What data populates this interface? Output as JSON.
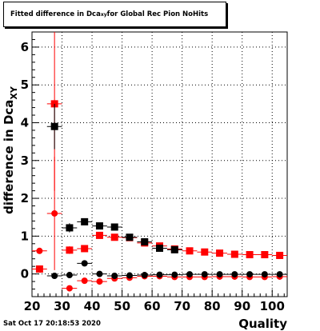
{
  "chart_data": {
    "type": "scatter",
    "title_prefix": "Fitted difference in Dca",
    "title_sub": "xy",
    "title_suffix": " for Global Rec Pion NoHits",
    "xlabel": "Quality",
    "ylabel_main": "difference in Dca",
    "ylabel_sub": "XY",
    "xlim": [
      20,
      105
    ],
    "ylim": [
      -0.6,
      6.4
    ],
    "x_ticks": [
      20,
      30,
      40,
      50,
      60,
      70,
      80,
      90,
      100
    ],
    "y_ticks": [
      0,
      1,
      2,
      3,
      4,
      5,
      6
    ],
    "grid": true,
    "x_error": 2.5,
    "series": [
      {
        "marker": "square",
        "color": "#ff0000",
        "points": [
          [
            27.5,
            4.5,
            2.3
          ],
          [
            32.5,
            0.63,
            0.1
          ],
          [
            37.5,
            0.67,
            0.06
          ],
          [
            42.5,
            1.02,
            0.06
          ],
          [
            47.5,
            0.97,
            0.05
          ],
          [
            52.5,
            0.96,
            0.05
          ],
          [
            57.5,
            0.82,
            0.04
          ],
          [
            62.5,
            0.74,
            0.04
          ],
          [
            67.5,
            0.66,
            0.03
          ],
          [
            72.5,
            0.61,
            0.03
          ],
          [
            77.5,
            0.58,
            0.03
          ],
          [
            82.5,
            0.55,
            0.02
          ],
          [
            87.5,
            0.52,
            0.02
          ],
          [
            92.5,
            0.51,
            0.02
          ],
          [
            97.5,
            0.51,
            0.02
          ],
          [
            102.5,
            0.49,
            0.02
          ]
        ]
      },
      {
        "marker": "square",
        "color": "#000000",
        "points": [
          [
            27.5,
            3.9,
            0.6
          ],
          [
            32.5,
            1.22,
            0.12
          ],
          [
            37.5,
            1.38,
            0.07
          ],
          [
            42.5,
            1.27,
            0.06
          ],
          [
            47.5,
            1.24,
            0.05
          ],
          [
            52.5,
            0.97,
            0.05
          ],
          [
            57.5,
            0.85,
            0.04
          ],
          [
            62.5,
            0.68,
            0.04
          ],
          [
            67.5,
            0.64,
            0.03
          ]
        ]
      },
      {
        "marker": "circle",
        "color": "#ff0000",
        "points": [
          [
            22.5,
            0.61,
            0.05
          ],
          [
            27.5,
            1.6,
            1.5
          ],
          [
            32.5,
            -0.38,
            0.06
          ],
          [
            37.5,
            -0.18,
            0.05
          ],
          [
            42.5,
            -0.2,
            0.04
          ],
          [
            47.5,
            -0.12,
            0.03
          ],
          [
            52.5,
            -0.1,
            0.03
          ],
          [
            57.5,
            -0.06,
            0.03
          ],
          [
            62.5,
            -0.06,
            0.02
          ],
          [
            67.5,
            -0.08,
            0.02
          ],
          [
            72.5,
            -0.08,
            0.02
          ],
          [
            77.5,
            -0.08,
            0.02
          ],
          [
            82.5,
            -0.07,
            0.02
          ],
          [
            87.5,
            -0.07,
            0.02
          ],
          [
            92.5,
            -0.08,
            0.02
          ],
          [
            97.5,
            -0.08,
            0.02
          ],
          [
            102.5,
            -0.07,
            0.02
          ]
        ]
      },
      {
        "marker": "circle",
        "color": "#000000",
        "points": [
          [
            27.5,
            -0.05,
            0.05
          ],
          [
            32.5,
            -0.03,
            0.06
          ],
          [
            37.5,
            0.28,
            0.05
          ],
          [
            42.5,
            0.0,
            0.04
          ],
          [
            47.5,
            -0.05,
            0.03
          ],
          [
            52.5,
            -0.04,
            0.03
          ],
          [
            57.5,
            -0.03,
            0.02
          ],
          [
            62.5,
            -0.02,
            0.02
          ],
          [
            67.5,
            -0.02,
            0.02
          ],
          [
            72.5,
            -0.01,
            0.02
          ],
          [
            77.5,
            -0.01,
            0.02
          ],
          [
            82.5,
            -0.01,
            0.02
          ],
          [
            87.5,
            -0.01,
            0.02
          ],
          [
            92.5,
            -0.01,
            0.02
          ],
          [
            97.5,
            -0.01,
            0.02
          ],
          [
            102.5,
            -0.01,
            0.02
          ]
        ]
      },
      {
        "marker": "square",
        "color": "#ff0000",
        "points": [
          [
            22.5,
            0.13,
            0.05
          ]
        ]
      }
    ]
  },
  "footer": {
    "datestamp": "Sat Oct 17 20:18:53 2020"
  }
}
